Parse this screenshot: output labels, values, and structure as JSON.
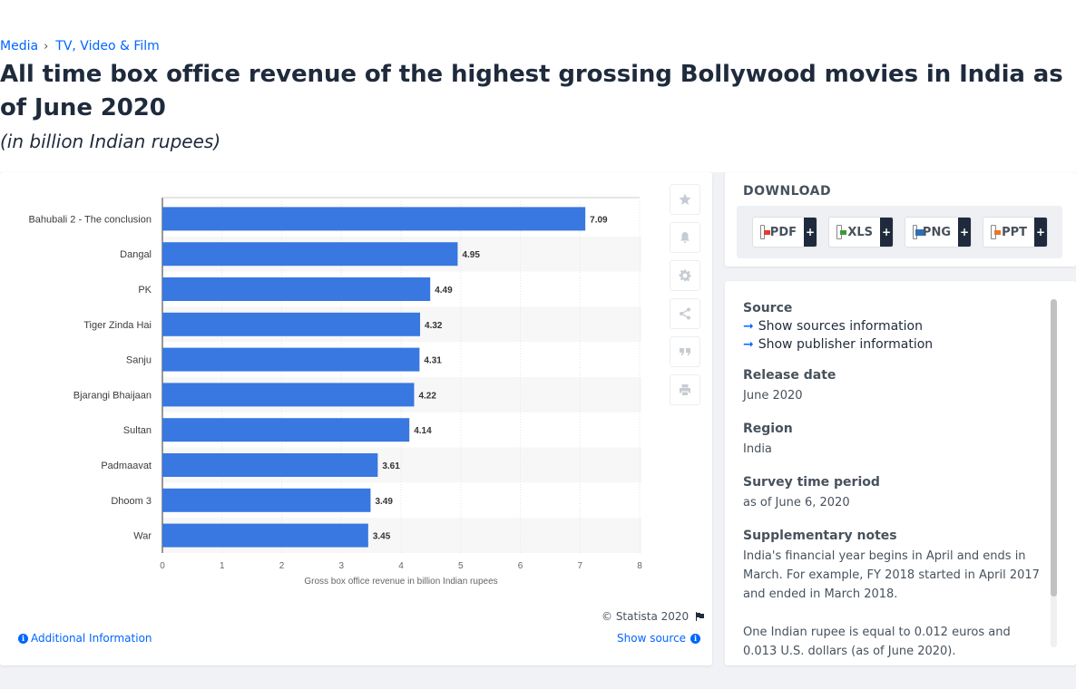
{
  "breadcrumb": {
    "items": [
      "Media",
      "TV, Video & Film"
    ],
    "separator": "›"
  },
  "header": {
    "title": "All time box office revenue of the highest grossing Bollywood movies in India as of June 2020",
    "subtitle": "(in billion Indian rupees)"
  },
  "chart_data": {
    "type": "bar",
    "orientation": "horizontal",
    "categories": [
      "Bahubali 2 - The conclusion",
      "Dangal",
      "PK",
      "Tiger Zinda Hai",
      "Sanju",
      "Bjarangi Bhaijaan",
      "Sultan",
      "Padmaavat",
      "Dhoom 3",
      "War"
    ],
    "values": [
      7.09,
      4.95,
      4.49,
      4.32,
      4.31,
      4.22,
      4.14,
      3.61,
      3.49,
      3.45
    ],
    "value_labels": [
      "7.09",
      "4.95",
      "4.49",
      "4.32",
      "4.31",
      "4.22",
      "4.14",
      "3.61",
      "3.49",
      "3.45"
    ],
    "xlabel": "Gross box office revenue in billion Indian rupees",
    "xlim": [
      0,
      8
    ],
    "xticks": [
      "0",
      "1",
      "2",
      "3",
      "4",
      "5",
      "6",
      "7",
      "8"
    ],
    "grid": true,
    "bar_color": "#3878e0"
  },
  "chart_footer": {
    "copyright": "© Statista 2020",
    "additional_info": "Additional Information",
    "show_source": "Show source"
  },
  "side_tools": [
    "star-icon",
    "bell-icon",
    "gear-icon",
    "share-icon",
    "quote-icon",
    "print-icon"
  ],
  "download": {
    "title": "DOWNLOAD",
    "buttons": [
      {
        "label": "PDF",
        "plus": "+",
        "color": "#e03c31"
      },
      {
        "label": "XLS",
        "plus": "+",
        "color": "#3a9b3a"
      },
      {
        "label": "PNG",
        "plus": "+",
        "color": "#2f6fb5"
      },
      {
        "label": "PPT",
        "plus": "+",
        "color": "#e87722"
      }
    ]
  },
  "info": {
    "source_heading": "Source",
    "show_sources": "Show sources information",
    "show_publisher": "Show publisher information",
    "release_heading": "Release date",
    "release_value": "June 2020",
    "region_heading": "Region",
    "region_value": "India",
    "survey_heading": "Survey time period",
    "survey_value": "as of June 6, 2020",
    "supp_heading": "Supplementary notes",
    "supp_note_1": "India's financial year begins in April and ends in March. For example, FY 2018 started in April 2017 and ended in March 2018.",
    "supp_note_2": "One Indian rupee is equal to 0.012 euros and 0.013 U.S. dollars (as of June 2020)."
  },
  "colors": {
    "accent": "#0066ff",
    "dark": "#1f2b3c"
  }
}
